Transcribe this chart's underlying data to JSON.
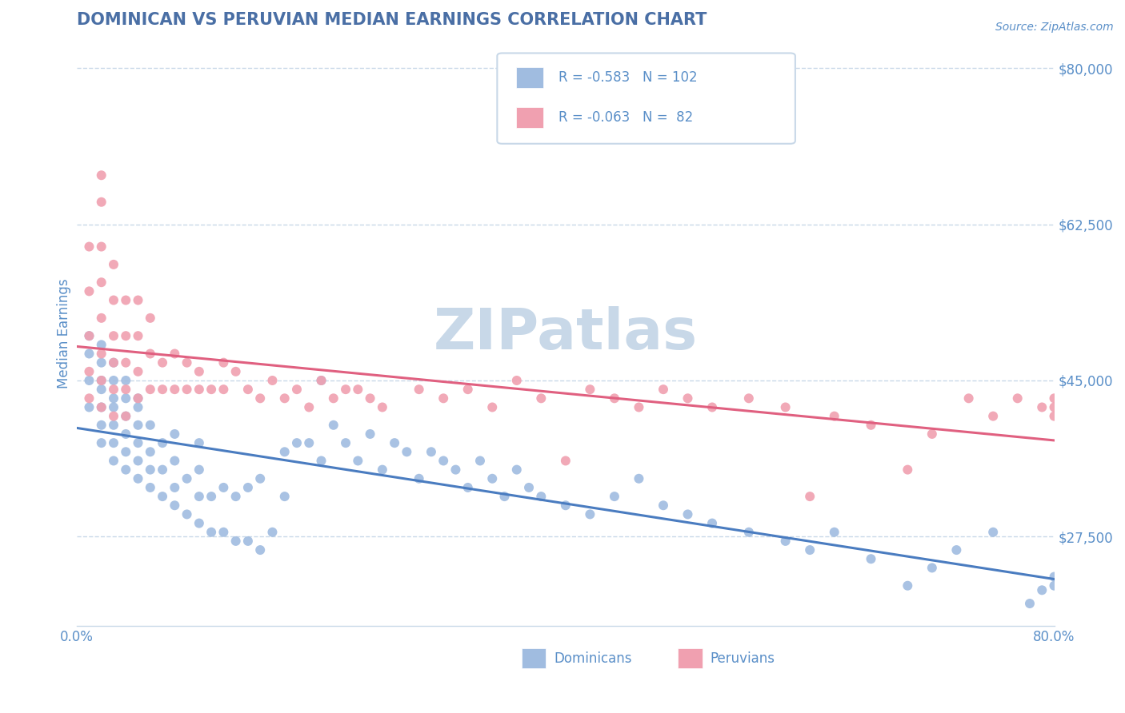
{
  "title": "DOMINICAN VS PERUVIAN MEDIAN EARNINGS CORRELATION CHART",
  "source_text": "Source: ZipAtlas.com",
  "ylabel": "Median Earnings",
  "title_color": "#4a6fa5",
  "title_fontsize": 15,
  "axis_color": "#5a8fc8",
  "background_color": "#ffffff",
  "grid_color": "#c8d8e8",
  "xmin": 0.0,
  "xmax": 0.8,
  "ymin": 17500,
  "ymax": 83000,
  "yticks": [
    27500,
    45000,
    62500,
    80000
  ],
  "ytick_labels": [
    "$27,500",
    "$45,000",
    "$62,500",
    "$80,000"
  ],
  "xticks": [
    0.0,
    0.1,
    0.2,
    0.3,
    0.4,
    0.5,
    0.6,
    0.7,
    0.8
  ],
  "xtick_labels": [
    "0.0%",
    "",
    "",
    "",
    "",
    "",
    "",
    "",
    "80.0%"
  ],
  "dominican_color": "#a0bce0",
  "peruvian_color": "#f0a0b0",
  "dominican_line_color": "#4a7cc0",
  "peruvian_line_color": "#e06080",
  "watermark_color": "#c8d8e8",
  "dominican_label": "Dominicans",
  "peruvian_label": "Peruvians",
  "dominican_R": -0.583,
  "dominican_N": 102,
  "peruvian_R": -0.063,
  "peruvian_N": 82,
  "dom_x": [
    0.01,
    0.01,
    0.01,
    0.01,
    0.02,
    0.02,
    0.02,
    0.02,
    0.02,
    0.02,
    0.02,
    0.03,
    0.03,
    0.03,
    0.03,
    0.03,
    0.03,
    0.03,
    0.04,
    0.04,
    0.04,
    0.04,
    0.04,
    0.04,
    0.05,
    0.05,
    0.05,
    0.05,
    0.05,
    0.05,
    0.06,
    0.06,
    0.06,
    0.06,
    0.07,
    0.07,
    0.07,
    0.08,
    0.08,
    0.08,
    0.08,
    0.09,
    0.09,
    0.1,
    0.1,
    0.1,
    0.1,
    0.11,
    0.11,
    0.12,
    0.12,
    0.13,
    0.13,
    0.14,
    0.14,
    0.15,
    0.15,
    0.16,
    0.17,
    0.17,
    0.18,
    0.19,
    0.2,
    0.2,
    0.21,
    0.22,
    0.23,
    0.24,
    0.25,
    0.26,
    0.27,
    0.28,
    0.29,
    0.3,
    0.31,
    0.32,
    0.33,
    0.34,
    0.35,
    0.36,
    0.37,
    0.38,
    0.4,
    0.42,
    0.44,
    0.46,
    0.48,
    0.5,
    0.52,
    0.55,
    0.58,
    0.6,
    0.62,
    0.65,
    0.68,
    0.7,
    0.72,
    0.75,
    0.78,
    0.79,
    0.8,
    0.8
  ],
  "dom_y": [
    42000,
    45000,
    48000,
    50000,
    38000,
    40000,
    42000,
    44000,
    45000,
    47000,
    49000,
    36000,
    38000,
    40000,
    42000,
    43000,
    45000,
    47000,
    35000,
    37000,
    39000,
    41000,
    43000,
    45000,
    34000,
    36000,
    38000,
    40000,
    42000,
    43000,
    33000,
    35000,
    37000,
    40000,
    32000,
    35000,
    38000,
    31000,
    33000,
    36000,
    39000,
    30000,
    34000,
    29000,
    32000,
    35000,
    38000,
    28000,
    32000,
    28000,
    33000,
    27000,
    32000,
    27000,
    33000,
    26000,
    34000,
    28000,
    37000,
    32000,
    38000,
    38000,
    45000,
    36000,
    40000,
    38000,
    36000,
    39000,
    35000,
    38000,
    37000,
    34000,
    37000,
    36000,
    35000,
    33000,
    36000,
    34000,
    32000,
    35000,
    33000,
    32000,
    31000,
    30000,
    32000,
    34000,
    31000,
    30000,
    29000,
    28000,
    27000,
    26000,
    28000,
    25000,
    22000,
    24000,
    26000,
    28000,
    20000,
    21500,
    23000,
    22000
  ],
  "per_x": [
    0.01,
    0.01,
    0.01,
    0.01,
    0.01,
    0.02,
    0.02,
    0.02,
    0.02,
    0.02,
    0.02,
    0.02,
    0.02,
    0.03,
    0.03,
    0.03,
    0.03,
    0.03,
    0.03,
    0.04,
    0.04,
    0.04,
    0.04,
    0.04,
    0.05,
    0.05,
    0.05,
    0.05,
    0.06,
    0.06,
    0.06,
    0.07,
    0.07,
    0.08,
    0.08,
    0.09,
    0.09,
    0.1,
    0.1,
    0.11,
    0.12,
    0.12,
    0.13,
    0.14,
    0.15,
    0.16,
    0.17,
    0.18,
    0.19,
    0.2,
    0.21,
    0.22,
    0.23,
    0.24,
    0.25,
    0.28,
    0.3,
    0.32,
    0.34,
    0.36,
    0.38,
    0.4,
    0.42,
    0.44,
    0.46,
    0.48,
    0.5,
    0.52,
    0.55,
    0.58,
    0.6,
    0.62,
    0.65,
    0.68,
    0.7,
    0.73,
    0.75,
    0.77,
    0.79,
    0.8,
    0.8,
    0.8
  ],
  "per_y": [
    43000,
    46000,
    50000,
    55000,
    60000,
    42000,
    45000,
    48000,
    52000,
    56000,
    60000,
    65000,
    68000,
    41000,
    44000,
    47000,
    50000,
    54000,
    58000,
    41000,
    44000,
    47000,
    50000,
    54000,
    43000,
    46000,
    50000,
    54000,
    44000,
    48000,
    52000,
    44000,
    47000,
    44000,
    48000,
    44000,
    47000,
    44000,
    46000,
    44000,
    44000,
    47000,
    46000,
    44000,
    43000,
    45000,
    43000,
    44000,
    42000,
    45000,
    43000,
    44000,
    44000,
    43000,
    42000,
    44000,
    43000,
    44000,
    42000,
    45000,
    43000,
    36000,
    44000,
    43000,
    42000,
    44000,
    43000,
    42000,
    43000,
    42000,
    32000,
    41000,
    40000,
    35000,
    39000,
    43000,
    41000,
    43000,
    42000,
    41000,
    43000,
    42000
  ]
}
